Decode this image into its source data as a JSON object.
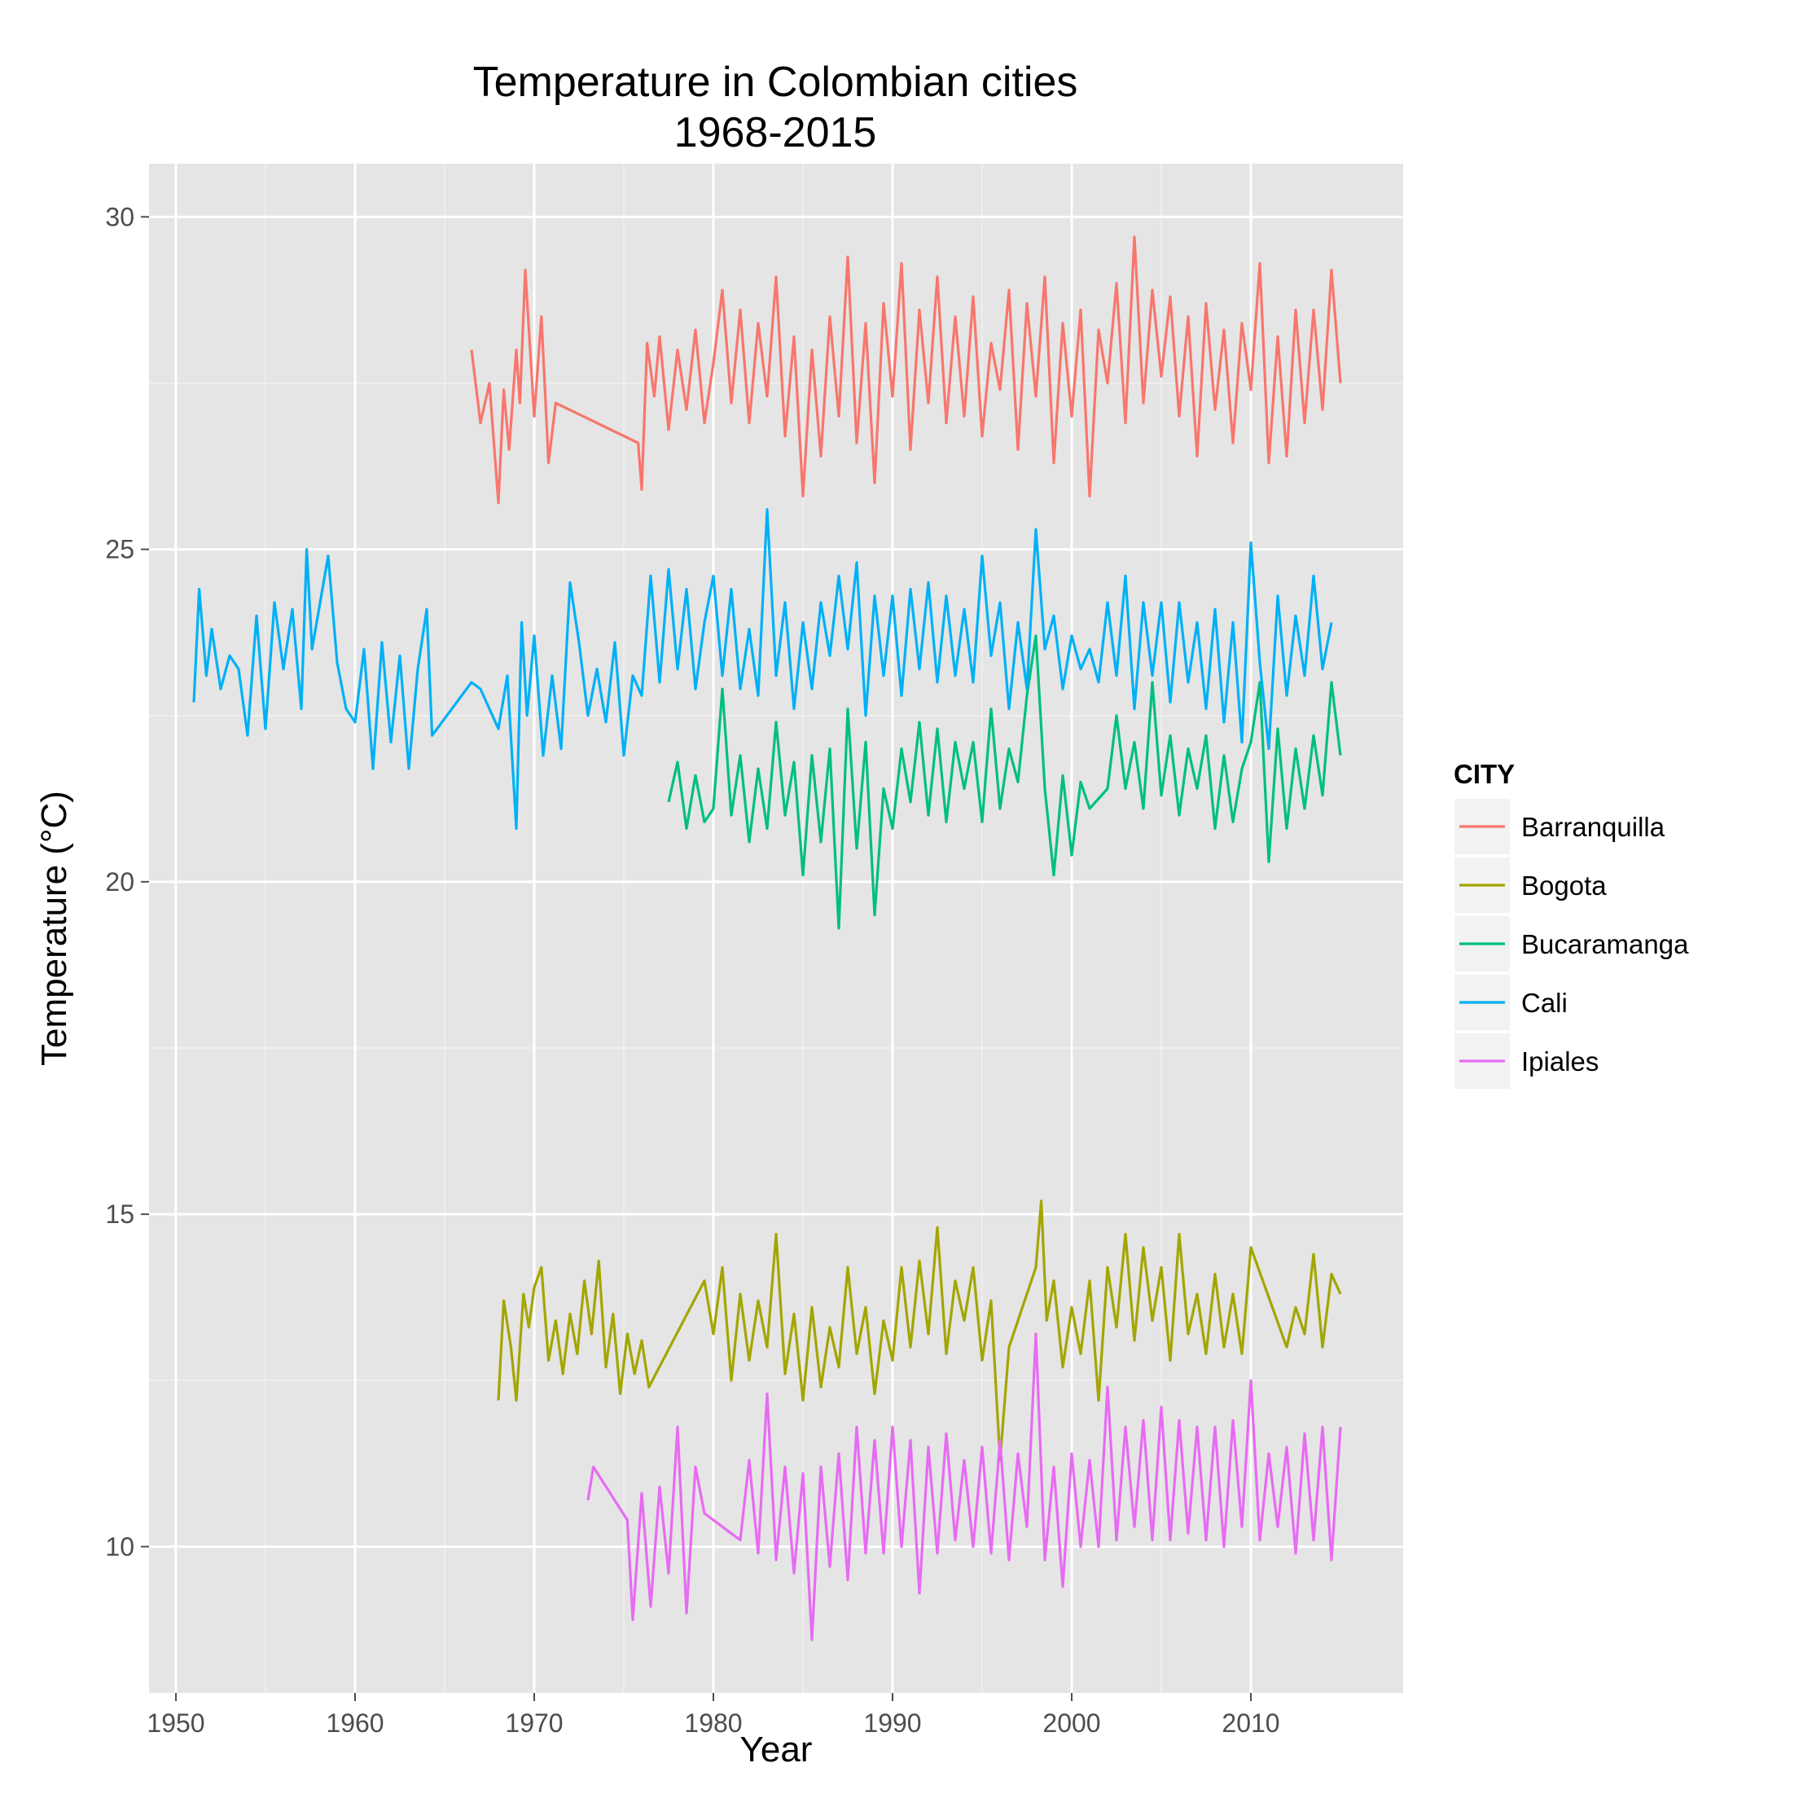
{
  "chart_data": {
    "type": "line",
    "title": [
      "Temperature in Colombian cities",
      "1968-2015"
    ],
    "xlabel": "Year",
    "ylabel": "Temperature (°C)",
    "xlim": [
      1948.5,
      2018.5
    ],
    "ylim": [
      7.8,
      30.8
    ],
    "x_ticks": [
      1950,
      1960,
      1970,
      1980,
      1990,
      2000,
      2010
    ],
    "x_tick_labels": [
      "1950",
      "1960",
      "1970",
      "1980",
      "1990",
      "2000",
      "2010"
    ],
    "y_ticks": [
      10,
      15,
      20,
      25,
      30
    ],
    "y_tick_labels": [
      "10",
      "15",
      "20",
      "25",
      "30"
    ],
    "grid": true,
    "legend": {
      "title": "CITY",
      "position": "right"
    },
    "series": [
      {
        "name": "Barranquilla",
        "color": "#F8766D",
        "x": [
          1966.5,
          1967.0,
          1967.5,
          1968.0,
          1968.3,
          1968.6,
          1969.0,
          1969.2,
          1969.5,
          1970.0,
          1970.4,
          1970.8,
          1971.2,
          1975.8,
          1976.0,
          1976.3,
          1976.7,
          1977.0,
          1977.5,
          1978.0,
          1978.5,
          1979.0,
          1979.5,
          1980.0,
          1980.5,
          1981.0,
          1981.5,
          1982.0,
          1982.5,
          1983.0,
          1983.5,
          1984.0,
          1984.5,
          1985.0,
          1985.5,
          1986.0,
          1986.5,
          1987.0,
          1987.5,
          1988.0,
          1988.5,
          1989.0,
          1989.5,
          1990.0,
          1990.5,
          1991.0,
          1991.5,
          1992.0,
          1992.5,
          1993.0,
          1993.5,
          1994.0,
          1994.5,
          1995.0,
          1995.5,
          1996.0,
          1996.5,
          1997.0,
          1997.5,
          1998.0,
          1998.5,
          1999.0,
          1999.5,
          2000.0,
          2000.5,
          2001.0,
          2001.5,
          2002.0,
          2002.5,
          2003.0,
          2003.5,
          2004.0,
          2004.5,
          2005.0,
          2005.5,
          2006.0,
          2006.5,
          2007.0,
          2007.5,
          2008.0,
          2008.5,
          2009.0,
          2009.5,
          2010.0,
          2010.5,
          2011.0,
          2011.5,
          2012.0,
          2012.5,
          2013.0,
          2013.5,
          2014.0,
          2014.5,
          2015.0
        ],
        "values": [
          28.0,
          26.9,
          27.5,
          25.7,
          27.4,
          26.5,
          28.0,
          27.2,
          29.2,
          27.0,
          28.5,
          26.3,
          27.2,
          26.6,
          25.9,
          28.1,
          27.3,
          28.2,
          26.8,
          28.0,
          27.1,
          28.3,
          26.9,
          27.8,
          28.9,
          27.2,
          28.6,
          26.9,
          28.4,
          27.3,
          29.1,
          26.7,
          28.2,
          25.8,
          28.0,
          26.4,
          28.5,
          27.0,
          29.4,
          26.6,
          28.4,
          26.0,
          28.7,
          27.3,
          29.3,
          26.5,
          28.6,
          27.2,
          29.1,
          26.9,
          28.5,
          27.0,
          28.8,
          26.7,
          28.1,
          27.4,
          28.9,
          26.5,
          28.7,
          27.3,
          29.1,
          26.3,
          28.4,
          27.0,
          28.6,
          25.8,
          28.3,
          27.5,
          29.0,
          26.9,
          29.7,
          27.2,
          28.9,
          27.6,
          28.8,
          27.0,
          28.5,
          26.4,
          28.7,
          27.1,
          28.3,
          26.6,
          28.4,
          27.4,
          29.3,
          26.3,
          28.2,
          26.4,
          28.6,
          26.9,
          28.6,
          27.1,
          29.2,
          27.5
        ]
      },
      {
        "name": "Bogota",
        "color": "#A3A500",
        "x": [
          1968.0,
          1968.3,
          1968.7,
          1969.0,
          1969.4,
          1969.7,
          1970.0,
          1970.4,
          1970.8,
          1971.2,
          1971.6,
          1972.0,
          1972.4,
          1972.8,
          1973.2,
          1973.6,
          1974.0,
          1974.4,
          1974.8,
          1975.2,
          1975.6,
          1976.0,
          1976.4,
          1979.5,
          1980.0,
          1980.5,
          1981.0,
          1981.5,
          1982.0,
          1982.5,
          1983.0,
          1983.5,
          1984.0,
          1984.5,
          1985.0,
          1985.5,
          1986.0,
          1986.5,
          1987.0,
          1987.5,
          1988.0,
          1988.5,
          1989.0,
          1989.5,
          1990.0,
          1990.5,
          1991.0,
          1991.5,
          1992.0,
          1992.5,
          1993.0,
          1993.5,
          1994.0,
          1994.5,
          1995.0,
          1995.5,
          1996.0,
          1996.5,
          1998.0,
          1998.3,
          1998.6,
          1999.0,
          1999.5,
          2000.0,
          2000.5,
          2001.0,
          2001.5,
          2002.0,
          2002.5,
          2003.0,
          2003.5,
          2004.0,
          2004.5,
          2005.0,
          2005.5,
          2006.0,
          2006.5,
          2007.0,
          2007.5,
          2008.0,
          2008.5,
          2009.0,
          2009.5,
          2010.0,
          2012.0,
          2012.5,
          2013.0,
          2013.5,
          2014.0,
          2014.5,
          2015.0
        ],
        "values": [
          12.2,
          13.7,
          13.0,
          12.2,
          13.8,
          13.3,
          13.9,
          14.2,
          12.8,
          13.4,
          12.6,
          13.5,
          12.9,
          14.0,
          13.2,
          14.3,
          12.7,
          13.5,
          12.3,
          13.2,
          12.6,
          13.1,
          12.4,
          14.0,
          13.2,
          14.2,
          12.5,
          13.8,
          12.8,
          13.7,
          13.0,
          14.7,
          12.6,
          13.5,
          12.2,
          13.6,
          12.4,
          13.3,
          12.7,
          14.2,
          12.9,
          13.6,
          12.3,
          13.4,
          12.8,
          14.2,
          13.0,
          14.3,
          13.2,
          14.8,
          12.9,
          14.0,
          13.4,
          14.2,
          12.8,
          13.7,
          11.3,
          13.0,
          14.2,
          15.2,
          13.4,
          14.0,
          12.7,
          13.6,
          12.9,
          14.0,
          12.2,
          14.2,
          13.3,
          14.7,
          13.1,
          14.5,
          13.4,
          14.2,
          12.8,
          14.7,
          13.2,
          13.8,
          12.9,
          14.1,
          13.0,
          13.8,
          12.9,
          14.5,
          13.0,
          13.6,
          13.2,
          14.4,
          13.0,
          14.1,
          13.8
        ]
      },
      {
        "name": "Bucaramanga",
        "color": "#00BF7D",
        "x": [
          1977.5,
          1978.0,
          1978.5,
          1979.0,
          1979.5,
          1980.0,
          1980.5,
          1981.0,
          1981.5,
          1982.0,
          1982.5,
          1983.0,
          1983.5,
          1984.0,
          1984.5,
          1985.0,
          1985.5,
          1986.0,
          1986.5,
          1987.0,
          1987.5,
          1988.0,
          1988.5,
          1989.0,
          1989.5,
          1990.0,
          1990.5,
          1991.0,
          1991.5,
          1992.0,
          1992.5,
          1993.0,
          1993.5,
          1994.0,
          1994.5,
          1995.0,
          1995.5,
          1996.0,
          1996.5,
          1997.0,
          1997.5,
          1998.0,
          1998.5,
          1999.0,
          1999.5,
          2000.0,
          2000.5,
          2001.0,
          2002.0,
          2002.5,
          2003.0,
          2003.5,
          2004.0,
          2004.5,
          2005.0,
          2005.5,
          2006.0,
          2006.5,
          2007.0,
          2007.5,
          2008.0,
          2008.5,
          2009.0,
          2009.5,
          2010.0,
          2010.5,
          2011.0,
          2011.5,
          2012.0,
          2012.5,
          2013.0,
          2013.5,
          2014.0,
          2014.5,
          2015.0
        ],
        "values": [
          21.2,
          21.8,
          20.8,
          21.6,
          20.9,
          21.1,
          22.9,
          21.0,
          21.9,
          20.6,
          21.7,
          20.8,
          22.4,
          21.0,
          21.8,
          20.1,
          21.9,
          20.6,
          22.0,
          19.3,
          22.6,
          20.5,
          22.1,
          19.5,
          21.4,
          20.8,
          22.0,
          21.2,
          22.4,
          21.0,
          22.3,
          20.9,
          22.1,
          21.4,
          22.1,
          20.9,
          22.6,
          21.1,
          22.0,
          21.5,
          22.8,
          23.7,
          21.4,
          20.1,
          21.6,
          20.4,
          21.5,
          21.1,
          21.4,
          22.5,
          21.4,
          22.1,
          21.1,
          23.0,
          21.3,
          22.2,
          21.0,
          22.0,
          21.4,
          22.2,
          20.8,
          21.9,
          20.9,
          21.7,
          22.1,
          23.0,
          20.3,
          22.3,
          20.8,
          22.0,
          21.1,
          22.2,
          21.3,
          23.0,
          21.9
        ]
      },
      {
        "name": "Cali",
        "color": "#00B0F6",
        "x": [
          1951.0,
          1951.3,
          1951.7,
          1952.0,
          1952.5,
          1953.0,
          1953.5,
          1954.0,
          1954.5,
          1955.0,
          1955.5,
          1956.0,
          1956.5,
          1957.0,
          1957.3,
          1957.6,
          1958.5,
          1959.0,
          1959.5,
          1960.0,
          1960.5,
          1961.0,
          1961.5,
          1962.0,
          1962.5,
          1963.0,
          1963.5,
          1964.0,
          1964.3,
          1966.5,
          1967.0,
          1967.5,
          1968.0,
          1968.5,
          1969.0,
          1969.3,
          1969.6,
          1970.0,
          1970.5,
          1971.0,
          1971.5,
          1972.0,
          1972.5,
          1973.0,
          1973.5,
          1974.0,
          1974.5,
          1975.0,
          1975.5,
          1976.0,
          1976.5,
          1977.0,
          1977.5,
          1978.0,
          1978.5,
          1979.0,
          1979.5,
          1980.0,
          1980.5,
          1981.0,
          1981.5,
          1982.0,
          1982.5,
          1983.0,
          1983.5,
          1984.0,
          1984.5,
          1985.0,
          1985.5,
          1986.0,
          1986.5,
          1987.0,
          1987.5,
          1988.0,
          1988.5,
          1989.0,
          1989.5,
          1990.0,
          1990.5,
          1991.0,
          1991.5,
          1992.0,
          1992.5,
          1993.0,
          1993.5,
          1994.0,
          1994.5,
          1995.0,
          1995.5,
          1996.0,
          1996.5,
          1997.0,
          1997.5,
          1998.0,
          1998.5,
          1999.0,
          1999.5,
          2000.0,
          2000.5,
          2001.0,
          2001.5,
          2002.0,
          2002.5,
          2003.0,
          2003.5,
          2004.0,
          2004.5,
          2005.0,
          2005.5,
          2006.0,
          2006.5,
          2007.0,
          2007.5,
          2008.0,
          2008.5,
          2009.0,
          2009.5,
          2010.0,
          2010.5,
          2011.0,
          2011.5,
          2012.0,
          2012.5,
          2013.0,
          2013.5,
          2014.0,
          2014.5
        ],
        "values": [
          22.7,
          24.4,
          23.1,
          23.8,
          22.9,
          23.4,
          23.2,
          22.2,
          24.0,
          22.3,
          24.2,
          23.2,
          24.1,
          22.6,
          25.0,
          23.5,
          24.9,
          23.3,
          22.6,
          22.4,
          23.5,
          21.7,
          23.6,
          22.1,
          23.4,
          21.7,
          23.2,
          24.1,
          22.2,
          23.0,
          22.9,
          22.6,
          22.3,
          23.1,
          20.8,
          23.9,
          22.5,
          23.7,
          21.9,
          23.1,
          22.0,
          24.5,
          23.6,
          22.5,
          23.2,
          22.4,
          23.6,
          21.9,
          23.1,
          22.8,
          24.6,
          23.0,
          24.7,
          23.2,
          24.4,
          22.9,
          23.9,
          24.6,
          23.1,
          24.4,
          22.9,
          23.8,
          22.8,
          25.6,
          23.1,
          24.2,
          22.6,
          23.9,
          22.9,
          24.2,
          23.4,
          24.6,
          23.5,
          24.8,
          22.5,
          24.3,
          23.1,
          24.3,
          22.8,
          24.4,
          23.2,
          24.5,
          23.0,
          24.3,
          23.1,
          24.1,
          23.0,
          24.9,
          23.4,
          24.2,
          22.6,
          23.9,
          22.9,
          25.3,
          23.5,
          24.0,
          22.9,
          23.7,
          23.2,
          23.5,
          23.0,
          24.2,
          23.1,
          24.6,
          22.6,
          24.2,
          23.1,
          24.2,
          22.7,
          24.2,
          23.0,
          23.9,
          22.6,
          24.1,
          22.4,
          23.9,
          22.1,
          25.1,
          23.3,
          22.0,
          24.3,
          22.8,
          24.0,
          23.1,
          24.6,
          23.2,
          23.9
        ]
      },
      {
        "name": "Ipiales",
        "color": "#E76BF3",
        "x": [
          1973.0,
          1973.3,
          1975.2,
          1975.5,
          1976.0,
          1976.5,
          1977.0,
          1977.5,
          1978.0,
          1978.5,
          1979.0,
          1979.5,
          1981.5,
          1982.0,
          1982.5,
          1983.0,
          1983.5,
          1984.0,
          1984.5,
          1985.0,
          1985.5,
          1986.0,
          1986.5,
          1987.0,
          1987.5,
          1988.0,
          1988.5,
          1989.0,
          1989.5,
          1990.0,
          1990.5,
          1991.0,
          1991.5,
          1992.0,
          1992.5,
          1993.0,
          1993.5,
          1994.0,
          1994.5,
          1995.0,
          1995.5,
          1996.0,
          1996.5,
          1997.0,
          1997.5,
          1998.0,
          1998.5,
          1999.0,
          1999.5,
          2000.0,
          2000.5,
          2001.0,
          2001.5,
          2002.0,
          2002.5,
          2003.0,
          2003.5,
          2004.0,
          2004.5,
          2005.0,
          2005.5,
          2006.0,
          2006.5,
          2007.0,
          2007.5,
          2008.0,
          2008.5,
          2009.0,
          2009.5,
          2010.0,
          2010.5,
          2011.0,
          2011.5,
          2012.0,
          2012.5,
          2013.0,
          2013.5,
          2014.0,
          2014.5,
          2015.0
        ],
        "values": [
          10.7,
          11.2,
          10.4,
          8.9,
          10.8,
          9.1,
          10.9,
          9.6,
          11.8,
          9.0,
          11.2,
          10.5,
          10.1,
          11.3,
          9.9,
          12.3,
          9.8,
          11.2,
          9.6,
          11.1,
          8.6,
          11.2,
          9.7,
          11.4,
          9.5,
          11.8,
          9.9,
          11.6,
          9.9,
          11.8,
          10.0,
          11.6,
          9.3,
          11.5,
          9.9,
          11.7,
          10.1,
          11.3,
          10.0,
          11.5,
          9.9,
          11.6,
          9.8,
          11.4,
          10.3,
          13.2,
          9.8,
          11.2,
          9.4,
          11.4,
          10.0,
          11.3,
          10.0,
          12.4,
          10.1,
          11.8,
          10.3,
          11.9,
          10.1,
          12.1,
          10.1,
          11.9,
          10.2,
          11.8,
          10.1,
          11.8,
          10.0,
          11.9,
          10.3,
          12.5,
          10.1,
          11.4,
          10.3,
          11.5,
          9.9,
          11.7,
          10.1,
          11.8,
          9.8,
          11.8
        ]
      }
    ]
  }
}
